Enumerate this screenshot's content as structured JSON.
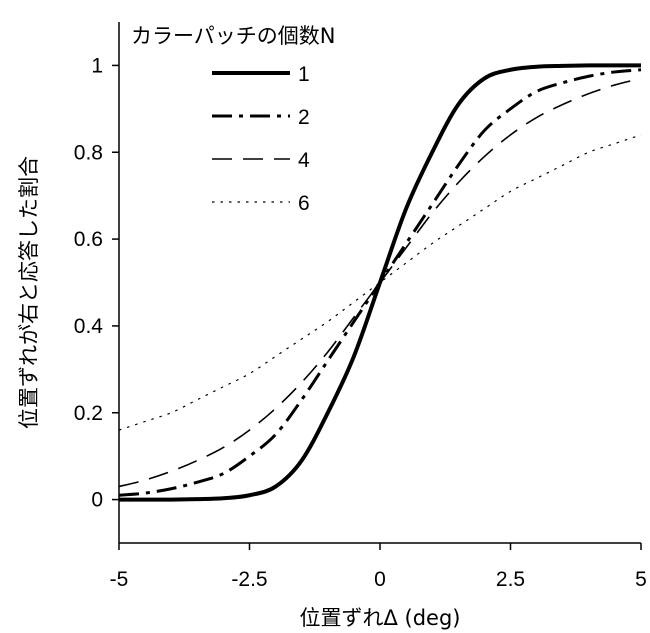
{
  "chart_data": {
    "type": "line",
    "xlabel": "位置ずれΔ (deg)",
    "ylabel": "位置ずれが右と応答した割合",
    "xlim": [
      -5,
      5
    ],
    "ylim": [
      -0.1,
      1.1
    ],
    "x_ticks": [
      "-5",
      "-2.5",
      "0",
      "2.5",
      "5"
    ],
    "y_ticks": [
      "0",
      "0.2",
      "0.4",
      "0.6",
      "0.8",
      "1"
    ],
    "legend_title": "カラーパッチの個数N",
    "legend_position": "top-left",
    "x": [
      -5,
      -4.5,
      -4,
      -3.5,
      -3,
      -2.5,
      -2,
      -1.5,
      -1,
      -0.5,
      0,
      0.5,
      1,
      1.5,
      2,
      2.5,
      3,
      3.5,
      4,
      4.5,
      5
    ],
    "series": [
      {
        "name": "1",
        "style": "solid",
        "values": [
          0.0,
          0.0,
          0.0,
          0.001,
          0.003,
          0.01,
          0.03,
          0.09,
          0.2,
          0.33,
          0.5,
          0.67,
          0.8,
          0.91,
          0.97,
          0.99,
          0.997,
          0.999,
          1.0,
          1.0,
          1.0
        ]
      },
      {
        "name": "2",
        "style": "dash-dot",
        "values": [
          0.01,
          0.015,
          0.025,
          0.04,
          0.06,
          0.1,
          0.15,
          0.23,
          0.32,
          0.41,
          0.5,
          0.59,
          0.68,
          0.77,
          0.85,
          0.9,
          0.94,
          0.96,
          0.975,
          0.985,
          0.99
        ]
      },
      {
        "name": "4",
        "style": "dashed",
        "values": [
          0.03,
          0.045,
          0.065,
          0.09,
          0.12,
          0.16,
          0.21,
          0.27,
          0.34,
          0.42,
          0.5,
          0.58,
          0.66,
          0.73,
          0.79,
          0.84,
          0.88,
          0.91,
          0.935,
          0.955,
          0.97
        ]
      },
      {
        "name": "6",
        "style": "dotted",
        "values": [
          0.16,
          0.18,
          0.2,
          0.23,
          0.26,
          0.29,
          0.33,
          0.37,
          0.41,
          0.455,
          0.5,
          0.545,
          0.59,
          0.63,
          0.67,
          0.71,
          0.74,
          0.77,
          0.8,
          0.82,
          0.84
        ]
      }
    ]
  }
}
